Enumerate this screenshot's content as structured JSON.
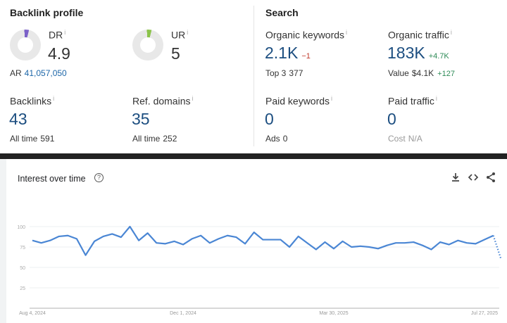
{
  "backlink_profile": {
    "title": "Backlink profile",
    "dr": {
      "label": "DR",
      "info": "i",
      "value": "4.9",
      "percent": 4.9,
      "color": "#7b61c8"
    },
    "ur": {
      "label": "UR",
      "info": "i",
      "value": "5",
      "percent": 5,
      "color": "#8bc34a"
    },
    "ar": {
      "label": "AR",
      "value": "41,057,050"
    },
    "backlinks": {
      "label": "Backlinks",
      "info": "i",
      "value": "43",
      "sub_label": "All time",
      "sub_value": "591"
    },
    "ref_domains": {
      "label": "Ref. domains",
      "info": "i",
      "value": "35",
      "sub_label": "All time",
      "sub_value": "252"
    }
  },
  "search": {
    "title": "Search",
    "organic_keywords": {
      "label": "Organic keywords",
      "info": "i",
      "value": "2.1K",
      "delta": "−1",
      "sub_label": "Top 3",
      "sub_value": "377"
    },
    "organic_traffic": {
      "label": "Organic traffic",
      "info": "i",
      "value": "183K",
      "delta": "+4.7K",
      "sub_label": "Value",
      "sub_value": "$4.1K",
      "sub_delta": "+127"
    },
    "paid_keywords": {
      "label": "Paid keywords",
      "info": "i",
      "value": "0",
      "sub_label": "Ads",
      "sub_value": "0"
    },
    "paid_traffic": {
      "label": "Paid traffic",
      "info": "i",
      "value": "0",
      "sub_label": "Cost",
      "sub_value": "N/A"
    }
  },
  "trends": {
    "title": "Interest over time",
    "help": "?",
    "icons": [
      "download-icon",
      "embed-icon",
      "share-icon"
    ]
  },
  "chart_data": {
    "type": "line",
    "title": "Interest over time",
    "ylim": [
      0,
      100
    ],
    "yticks": [
      "100",
      "75",
      "50",
      "25"
    ],
    "xtick_labels": [
      "Aug 4, 2024",
      "Dec 1, 2024",
      "Mar 30, 2025",
      "Jul 27, 2025"
    ],
    "xtick_indices": [
      0,
      17,
      34,
      51
    ],
    "series": [
      {
        "name": "Interest",
        "color": "#4a86d4",
        "values": [
          83,
          80,
          83,
          88,
          89,
          85,
          65,
          82,
          88,
          91,
          87,
          100,
          83,
          92,
          80,
          79,
          82,
          78,
          85,
          89,
          80,
          85,
          89,
          87,
          79,
          93,
          84,
          84,
          84,
          75,
          88,
          80,
          72,
          81,
          73,
          82,
          75,
          76,
          75,
          73,
          77,
          80,
          80,
          81,
          77,
          72,
          81,
          78,
          83,
          80,
          79,
          84,
          89
        ],
        "partial_last": 60
      }
    ],
    "grid": true
  }
}
